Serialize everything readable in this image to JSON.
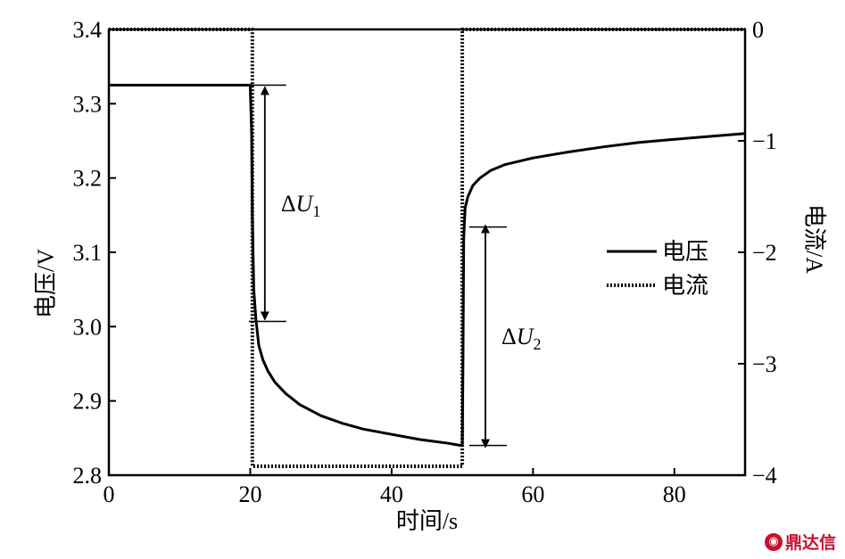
{
  "chart_data": {
    "type": "line",
    "xlabel": "时间/s",
    "ylabel_left": "电压/V",
    "ylabel_right": "电流/A",
    "xlim": [
      0,
      90
    ],
    "ylim_left": [
      2.8,
      3.4
    ],
    "ylim_right": [
      -4,
      0
    ],
    "x_ticks": [
      "0",
      "20",
      "40",
      "60",
      "80"
    ],
    "y_left_ticks": [
      "2.8",
      "2.9",
      "3.0",
      "3.1",
      "3.2",
      "3.3",
      "3.4"
    ],
    "y_right_ticks": [
      "−4",
      "−3",
      "−2",
      "−1",
      "0"
    ],
    "legend_position": "right-center",
    "grid": false,
    "series": [
      {
        "name": "电压",
        "axis": "left",
        "style": "solid",
        "color": "#000000",
        "x": [
          0,
          20,
          20.2,
          20.3,
          20.5,
          20.8,
          21.2,
          21.8,
          22.5,
          23.5,
          25,
          27,
          30,
          33,
          36,
          40,
          44,
          48,
          49.8,
          50,
          50.1,
          50.2,
          50.4,
          50.8,
          51.5,
          52.5,
          54,
          56,
          60,
          65,
          70,
          75,
          80,
          85,
          90
        ],
        "values": [
          3.325,
          3.325,
          3.26,
          3.15,
          3.05,
          3.01,
          2.975,
          2.955,
          2.94,
          2.925,
          2.91,
          2.895,
          2.88,
          2.87,
          2.862,
          2.855,
          2.848,
          2.843,
          2.84,
          2.84,
          2.96,
          3.12,
          3.16,
          3.175,
          3.19,
          3.2,
          3.21,
          3.218,
          3.227,
          3.235,
          3.242,
          3.248,
          3.252,
          3.256,
          3.26
        ]
      },
      {
        "name": "电流",
        "axis": "right",
        "style": "dashed",
        "color": "#000000",
        "x": [
          0,
          20.3,
          20.3,
          50,
          50,
          90
        ],
        "values": [
          0,
          0,
          -3.92,
          -3.92,
          0,
          0
        ]
      }
    ],
    "annotations": [
      {
        "label_prefix": "Δ",
        "symbol": "U",
        "subscript": "1",
        "x": 20.3,
        "y_from": 3.325,
        "y_to": 3.007
      },
      {
        "label_prefix": "Δ",
        "symbol": "U",
        "subscript": "2",
        "x": 51.5,
        "y_from": 2.84,
        "y_to": 3.134
      }
    ]
  },
  "watermark": {
    "text": "鼎达信",
    "icon": "logo-icon"
  }
}
